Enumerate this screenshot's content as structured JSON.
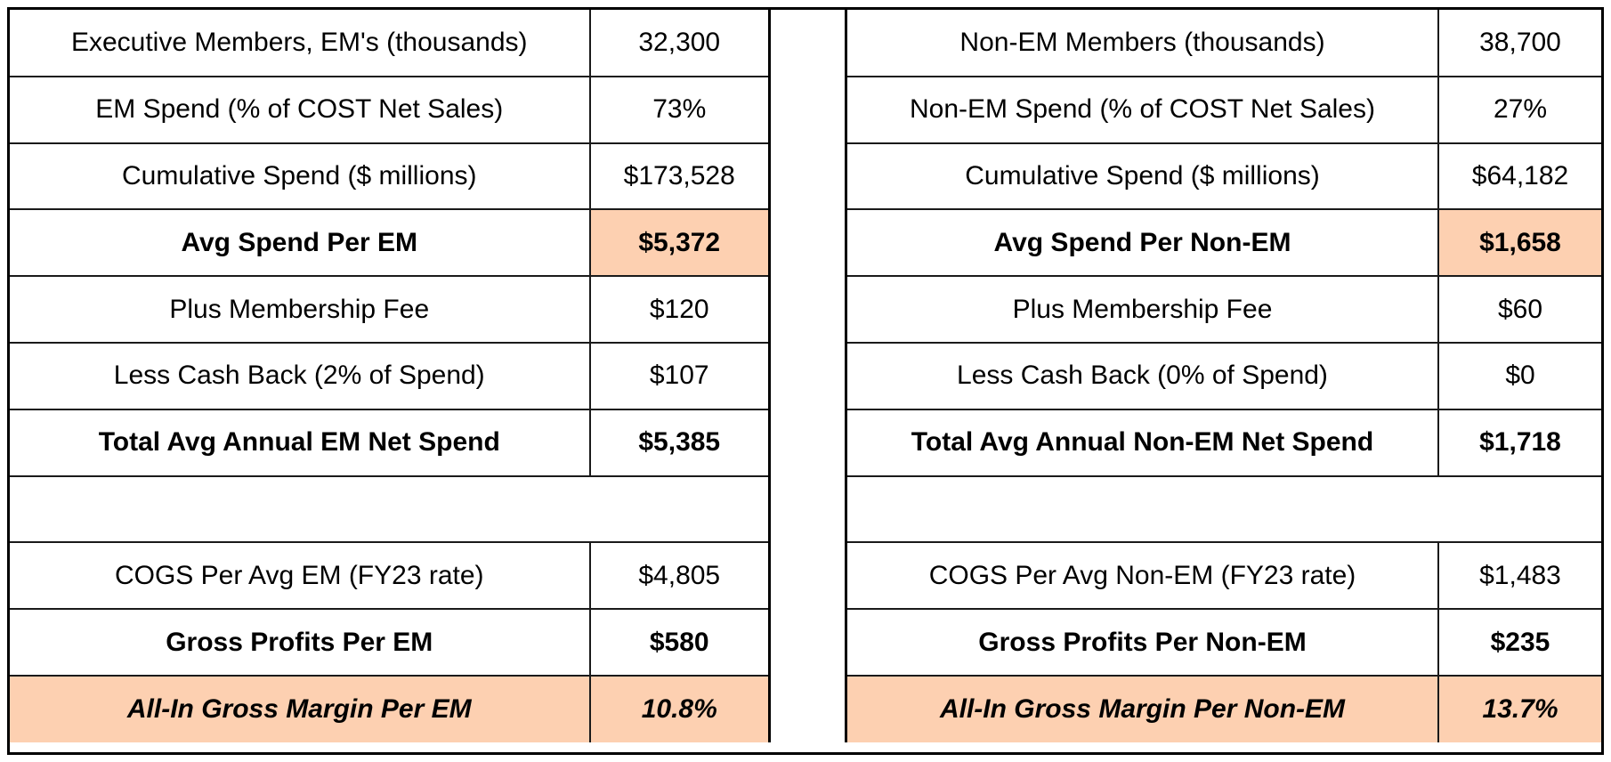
{
  "colors": {
    "highlight": "#fdd0b1",
    "border": "#1a1a1a"
  },
  "left_table": {
    "rows": [
      {
        "label": "Executive Members, EM's (thousands)",
        "value": "32,300"
      },
      {
        "label": "EM Spend (% of COST Net Sales)",
        "value": "73%"
      },
      {
        "label": "Cumulative Spend ($ millions)",
        "value": "$173,528"
      },
      {
        "label": "Avg Spend Per EM",
        "value": "$5,372"
      },
      {
        "label": "Plus Membership Fee",
        "value": "$120"
      },
      {
        "label": "Less Cash Back (2% of Spend)",
        "value": "$107"
      },
      {
        "label": "Total Avg Annual EM Net Spend",
        "value": "$5,385"
      },
      {
        "label": "",
        "value": ""
      },
      {
        "label": "COGS Per Avg EM (FY23 rate)",
        "value": "$4,805"
      },
      {
        "label": "Gross Profits Per EM",
        "value": "$580"
      },
      {
        "label": "All-In Gross Margin Per EM",
        "value": "10.8%"
      }
    ]
  },
  "right_table": {
    "rows": [
      {
        "label": "Non-EM Members (thousands)",
        "value": "38,700"
      },
      {
        "label": "Non-EM Spend (% of COST Net Sales)",
        "value": "27%"
      },
      {
        "label": "Cumulative Spend ($ millions)",
        "value": "$64,182"
      },
      {
        "label": "Avg Spend Per Non-EM",
        "value": "$1,658"
      },
      {
        "label": "Plus Membership Fee",
        "value": "$60"
      },
      {
        "label": "Less Cash Back (0% of Spend)",
        "value": "$0"
      },
      {
        "label": "Total Avg Annual Non-EM Net Spend",
        "value": "$1,718"
      },
      {
        "label": "",
        "value": ""
      },
      {
        "label": "COGS Per Avg Non-EM (FY23 rate)",
        "value": "$1,483"
      },
      {
        "label": "Gross Profits Per Non-EM",
        "value": "$235"
      },
      {
        "label": "All-In Gross Margin Per Non-EM",
        "value": "13.7%"
      }
    ]
  }
}
